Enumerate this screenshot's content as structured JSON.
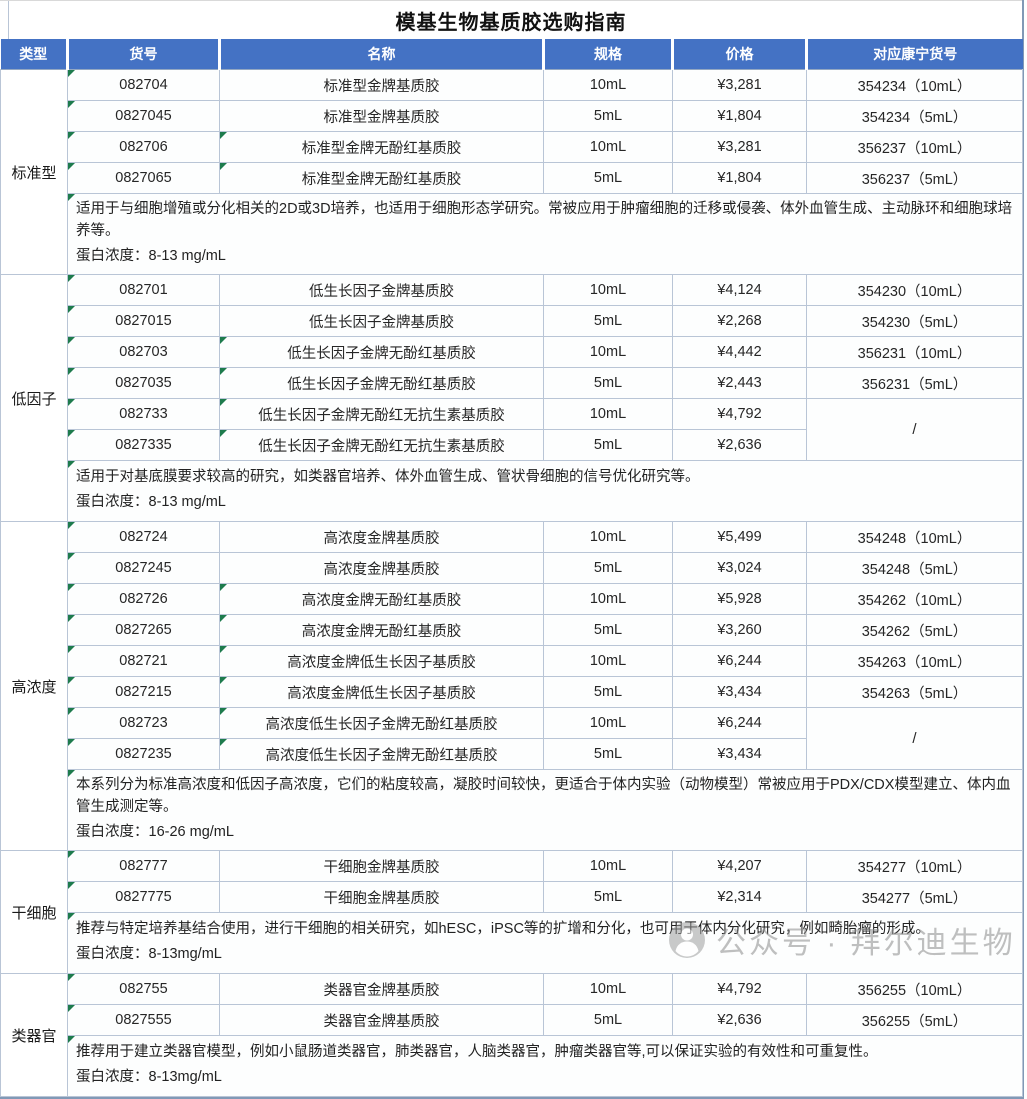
{
  "title": "模基生物基质胶选购指南",
  "columns": [
    "类型",
    "货号",
    "名称",
    "规格",
    "价格",
    "对应康宁货号"
  ],
  "watermark": {
    "icon": "wechat-official-account-icon",
    "text": "公众号 · 拜尔迪生物"
  },
  "colors": {
    "header_bg": "#4472C4",
    "header_text": "#FFFFFF",
    "grid_line": "#B9C5D6",
    "section_line": "#93A7C2",
    "triangle_green": "#1E7B4D",
    "watermark_gray": "#8C8C8C"
  },
  "sections": [
    {
      "type": "标准型",
      "rows": [
        {
          "cat": "082704",
          "name": "标准型金牌基质胶",
          "spec": "10mL",
          "price": "¥3,281",
          "corning": "354234（10mL）"
        },
        {
          "cat": "0827045",
          "name": "标准型金牌基质胶",
          "spec": "5mL",
          "price": "¥1,804",
          "corning": "354234（5mL）"
        },
        {
          "cat": "082706",
          "name": "标准型金牌无酚红基质胶",
          "spec": "10mL",
          "price": "¥3,281",
          "corning": "356237（10mL）",
          "tri_name": true
        },
        {
          "cat": "0827065",
          "name": "标准型金牌无酚红基质胶",
          "spec": "5mL",
          "price": "¥1,804",
          "corning": "356237（5mL）",
          "tri_name": true
        }
      ],
      "desc": "适用于与细胞增殖或分化相关的2D或3D培养，也适用于细胞形态学研究。常被应用于肿瘤细胞的迁移或侵袭、体外血管生成、主动脉环和细胞球培养等。",
      "protein": "蛋白浓度：8-13 mg/mL"
    },
    {
      "type": "低因子",
      "rows": [
        {
          "cat": "082701",
          "name": "低生长因子金牌基质胶",
          "spec": "10mL",
          "price": "¥4,124",
          "corning": "354230（10mL）"
        },
        {
          "cat": "0827015",
          "name": "低生长因子金牌基质胶",
          "spec": "5mL",
          "price": "¥2,268",
          "corning": "354230（5mL）"
        },
        {
          "cat": "082703",
          "name": "低生长因子金牌无酚红基质胶",
          "spec": "10mL",
          "price": "¥4,442",
          "corning": "356231（10mL）",
          "tri_name": true
        },
        {
          "cat": "0827035",
          "name": "低生长因子金牌无酚红基质胶",
          "spec": "5mL",
          "price": "¥2,443",
          "corning": "356231（5mL）",
          "tri_name": true
        },
        {
          "cat": "082733",
          "name": "低生长因子金牌无酚红无抗生素基质胶",
          "spec": "10mL",
          "price": "¥4,792",
          "corning": "/",
          "corning_rowspan": 2,
          "tri_name": true
        },
        {
          "cat": "0827335",
          "name": "低生长因子金牌无酚红无抗生素基质胶",
          "spec": "5mL",
          "price": "¥2,636",
          "corning": null,
          "tri_name": true
        }
      ],
      "desc": "适用于对基底膜要求较高的研究，如类器官培养、体外血管生成、管状骨细胞的信号优化研究等。",
      "protein": "蛋白浓度：8-13 mg/mL"
    },
    {
      "type": "高浓度",
      "rows": [
        {
          "cat": "082724",
          "name": "高浓度金牌基质胶",
          "spec": "10mL",
          "price": "¥5,499",
          "corning": "354248（10mL）"
        },
        {
          "cat": "0827245",
          "name": "高浓度金牌基质胶",
          "spec": "5mL",
          "price": "¥3,024",
          "corning": "354248（5mL）"
        },
        {
          "cat": "082726",
          "name": "高浓度金牌无酚红基质胶",
          "spec": "10mL",
          "price": "¥5,928",
          "corning": "354262（10mL）",
          "tri_name": true
        },
        {
          "cat": "0827265",
          "name": "高浓度金牌无酚红基质胶",
          "spec": "5mL",
          "price": "¥3,260",
          "corning": "354262（5mL）",
          "tri_name": true
        },
        {
          "cat": "082721",
          "name": "高浓度金牌低生长因子基质胶",
          "spec": "10mL",
          "price": "¥6,244",
          "corning": "354263（10mL）",
          "tri_name": true
        },
        {
          "cat": "0827215",
          "name": "高浓度金牌低生长因子基质胶",
          "spec": "5mL",
          "price": "¥3,434",
          "corning": "354263（5mL）",
          "tri_name": true
        },
        {
          "cat": "082723",
          "name": "高浓度低生长因子金牌无酚红基质胶",
          "spec": "10mL",
          "price": "¥6,244",
          "corning": "/",
          "corning_rowspan": 2,
          "tri_name": true
        },
        {
          "cat": "0827235",
          "name": "高浓度低生长因子金牌无酚红基质胶",
          "spec": "5mL",
          "price": "¥3,434",
          "corning": null,
          "tri_name": true
        }
      ],
      "desc": "本系列分为标准高浓度和低因子高浓度，它们的粘度较高，凝胶时间较快，更适合于体内实验（动物模型）常被应用于PDX/CDX模型建立、体内血管生成测定等。",
      "protein": "蛋白浓度：16-26 mg/mL"
    },
    {
      "type": "干细胞",
      "rows": [
        {
          "cat": "082777",
          "name": "干细胞金牌基质胶",
          "spec": "10mL",
          "price": "¥4,207",
          "corning": "354277（10mL）"
        },
        {
          "cat": "0827775",
          "name": "干细胞金牌基质胶",
          "spec": "5mL",
          "price": "¥2,314",
          "corning": "354277（5mL）"
        }
      ],
      "desc": "推荐与特定培养基结合使用，进行干细胞的相关研究，如hESC，iPSC等的扩增和分化，也可用于体内分化研究，例如畸胎瘤的形成。",
      "protein": "蛋白浓度：8-13mg/mL"
    },
    {
      "type": "类器官",
      "rows": [
        {
          "cat": "082755",
          "name": "类器官金牌基质胶",
          "spec": "10mL",
          "price": "¥4,792",
          "corning": "356255（10mL）"
        },
        {
          "cat": "0827555",
          "name": "类器官金牌基质胶",
          "spec": "5mL",
          "price": "¥2,636",
          "corning": "356255（5mL）"
        }
      ],
      "desc": "推荐用于建立类器官模型，例如小鼠肠道类器官，肺类器官，人脑类器官，肿瘤类器官等,可以保证实验的有效性和可重复性。",
      "protein": "蛋白浓度：8-13mg/mL"
    }
  ]
}
